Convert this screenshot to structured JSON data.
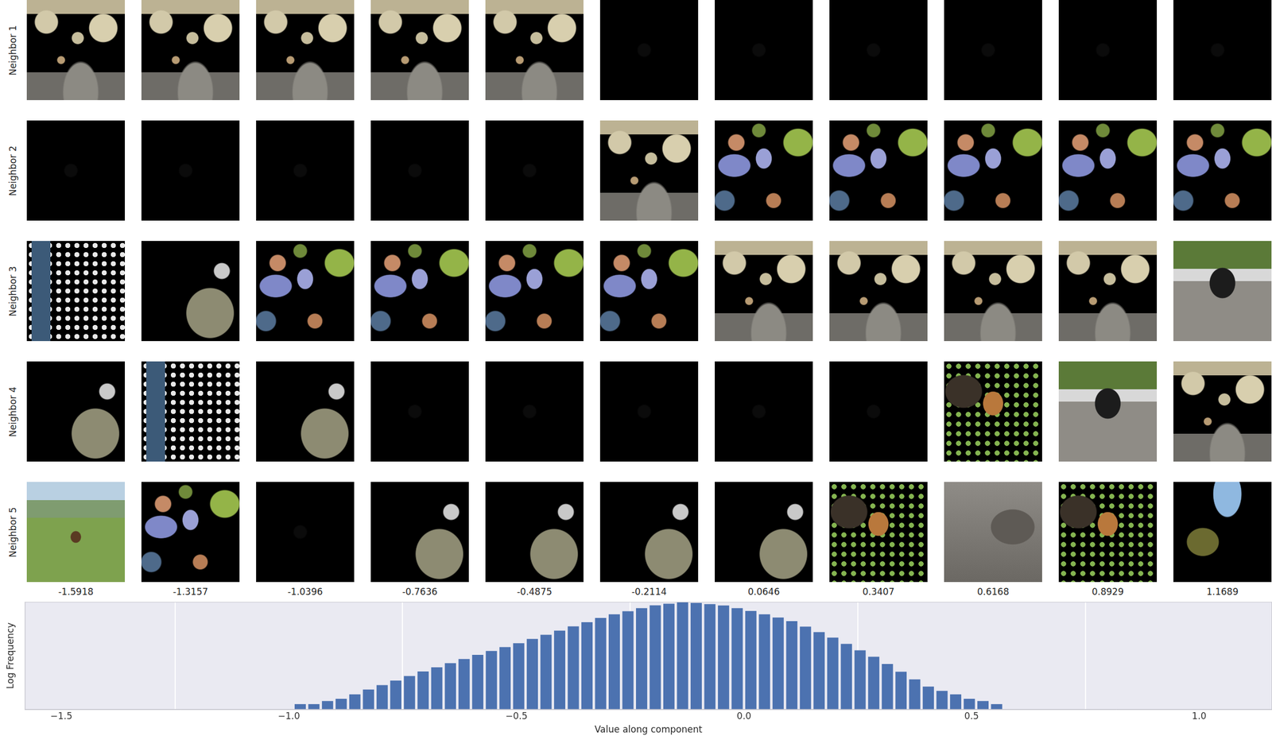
{
  "image_grid": {
    "row_labels": [
      "Neighbor 1",
      "Neighbor 2",
      "Neighbor 3",
      "Neighbor 4",
      "Neighbor 5"
    ],
    "column_values": [
      -1.5918,
      -1.3157,
      -1.0396,
      -0.7636,
      -0.4875,
      -0.2114,
      0.0646,
      0.3407,
      0.6168,
      0.8929,
      1.1689
    ]
  },
  "chart_data": {
    "type": "histogram",
    "x_label": "Value along component",
    "y_label": "Log Frequency",
    "bins": [
      -1.05,
      -1.02,
      -0.99,
      -0.96,
      -0.93,
      -0.9,
      -0.87,
      -0.84,
      -0.81,
      -0.78,
      -0.75,
      -0.72,
      -0.69,
      -0.66,
      -0.63,
      -0.6,
      -0.57,
      -0.54,
      -0.51,
      -0.48,
      -0.45,
      -0.42,
      -0.39,
      -0.36,
      -0.33,
      -0.3,
      -0.27,
      -0.24,
      -0.21,
      -0.18,
      -0.15,
      -0.12,
      -0.09,
      -0.06,
      -0.03,
      0,
      0.03,
      0.06,
      0.09,
      0.12,
      0.15,
      0.18,
      0.21,
      0.24,
      0.27,
      0.3,
      0.33,
      0.36,
      0.39,
      0.42,
      0.45,
      0.48,
      0.51,
      0.54,
      0.57,
      0.6,
      0.63
    ],
    "counts": [
      1,
      1,
      2,
      2,
      3,
      4,
      7,
      13,
      23,
      41,
      74,
      132,
      226,
      388,
      661,
      1117,
      1837,
      3020,
      5000,
      8570,
      14690,
      25120,
      43150,
      73960,
      126800,
      201800,
      300600,
      443600,
      638300,
      785300,
      966000,
      878600,
      748200,
      625200,
      448700,
      309000,
      204200,
      134900,
      84920,
      41980,
      20750,
      10250,
      4571,
      1995,
      871,
      350,
      129,
      48,
      19,
      11,
      7,
      4,
      3,
      2,
      1,
      1
    ],
    "color": "#4c72b0",
    "xlim": [
      -1.58,
      1.16
    ],
    "xticks": [
      {
        "value": -1.5,
        "label": "−1.5"
      },
      {
        "value": -1.0,
        "label": "−1.0"
      },
      {
        "value": -0.5,
        "label": "−0.5"
      },
      {
        "value": 0.0,
        "label": "0.0"
      },
      0.5,
      {
        "value": 1.0,
        "label": "1.0"
      }
    ],
    "ylim": [
      1,
      1000000
    ],
    "log": "y",
    "grid": true,
    "tick_labels": "x"
  }
}
